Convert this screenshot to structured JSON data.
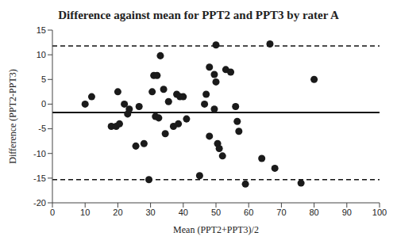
{
  "chart_data": {
    "type": "scatter",
    "title": "Difference against mean for PPT2 and PPT3 by rater A",
    "x_label": "Mean (PPT2+PPT3)/2",
    "y_label": "Difference (PPT2-PPT3)",
    "x": [
      10,
      12,
      18,
      19.5,
      20,
      20.5,
      22,
      23,
      23.5,
      25.5,
      26.5,
      28,
      29.5,
      30.5,
      31,
      32,
      31.5,
      32.5,
      33,
      34,
      34.5,
      35.5,
      37,
      38,
      38.5,
      39,
      40,
      41,
      45,
      46.5,
      47,
      48,
      48,
      49.5,
      50,
      49.5,
      50,
      50.5,
      51,
      52,
      53,
      54.5,
      56,
      56.5,
      57,
      59,
      64,
      66.5,
      68,
      76,
      80
    ],
    "y": [
      0,
      1.5,
      -4.5,
      -4.5,
      2.5,
      -4,
      0,
      -2,
      -1,
      -8.5,
      -0.5,
      -8,
      -15.3,
      2.5,
      5.8,
      5.8,
      -2.5,
      -2.8,
      9.8,
      3,
      -6,
      0.5,
      -4.5,
      2,
      -4,
      1.5,
      1.5,
      -3,
      -14.5,
      0,
      2,
      7.5,
      -6.5,
      6,
      4.5,
      -1,
      12,
      -8,
      -9,
      -10.5,
      7,
      6.5,
      -0.5,
      -3.5,
      -5.5,
      -16.2,
      -11,
      12.2,
      -13,
      -16,
      5
    ],
    "color": "#1a1a1a",
    "marker": "circle",
    "xlim": [
      0,
      100
    ],
    "xticks": [
      0,
      10,
      20,
      30,
      40,
      50,
      60,
      70,
      80,
      90,
      100
    ],
    "ylim": [
      -20,
      15
    ],
    "yticks": [
      -20,
      -15,
      -10,
      -5,
      0,
      5,
      10,
      15
    ],
    "grid": false,
    "reference_lines": [
      {
        "value": -1.7,
        "line_style": "solid"
      },
      {
        "value": 11.8,
        "line_style": "dashed"
      },
      {
        "value": -15.3,
        "line_style": "dashed"
      }
    ]
  }
}
